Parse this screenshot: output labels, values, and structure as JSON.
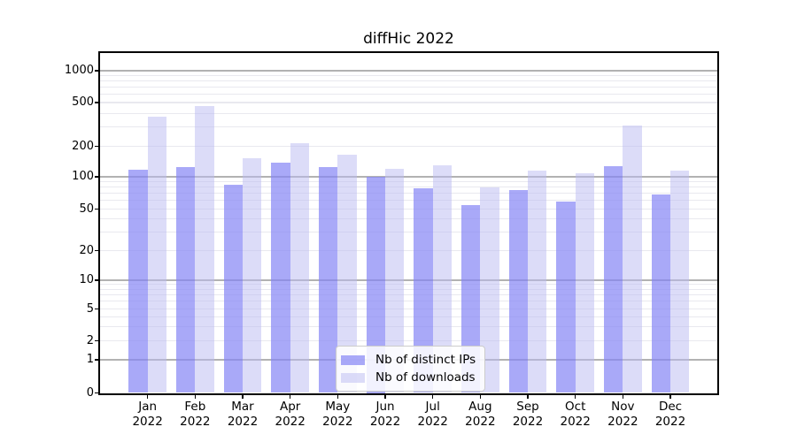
{
  "chart_data": {
    "type": "bar",
    "title": "diffHic 2022",
    "categories": [
      "Jan",
      "Feb",
      "Mar",
      "Apr",
      "May",
      "Jun",
      "Jul",
      "Aug",
      "Sep",
      "Oct",
      "Nov",
      "Dec"
    ],
    "year_label": "2022",
    "series": [
      {
        "name": "Nb of distinct IPs",
        "color": "#8484f5",
        "alpha": 0.7,
        "values": [
          118,
          125,
          85,
          138,
          124,
          100,
          78,
          54,
          75,
          59,
          128,
          69
        ]
      },
      {
        "name": "Nb of downloads",
        "color": "#b9b9f1",
        "alpha": 0.5,
        "values": [
          375,
          462,
          152,
          214,
          165,
          121,
          131,
          80,
          116,
          108,
          310,
          116
        ]
      }
    ],
    "yticks": [
      0,
      1,
      2,
      5,
      10,
      20,
      50,
      100,
      200,
      500,
      1000
    ],
    "ylim": [
      0,
      1400
    ],
    "yscale": "log-like (labeled ticks 0,1,2,5,...,1000; 0 pinned at axis bottom)",
    "xlabel": "",
    "ylabel": "",
    "grid": "horizontal only; major lines at powers of 10, light minor lines between",
    "legend_position": "inside axes, lower center-right"
  },
  "colors": {
    "ips_bar": "#8484f5",
    "downloads_bar": "#b9b9f1",
    "major_grid": "#b2b2b2",
    "minor_grid": "#e9e9ef",
    "axis": "#000000",
    "legend_border": "#cccccc",
    "background": "#ffffff"
  }
}
